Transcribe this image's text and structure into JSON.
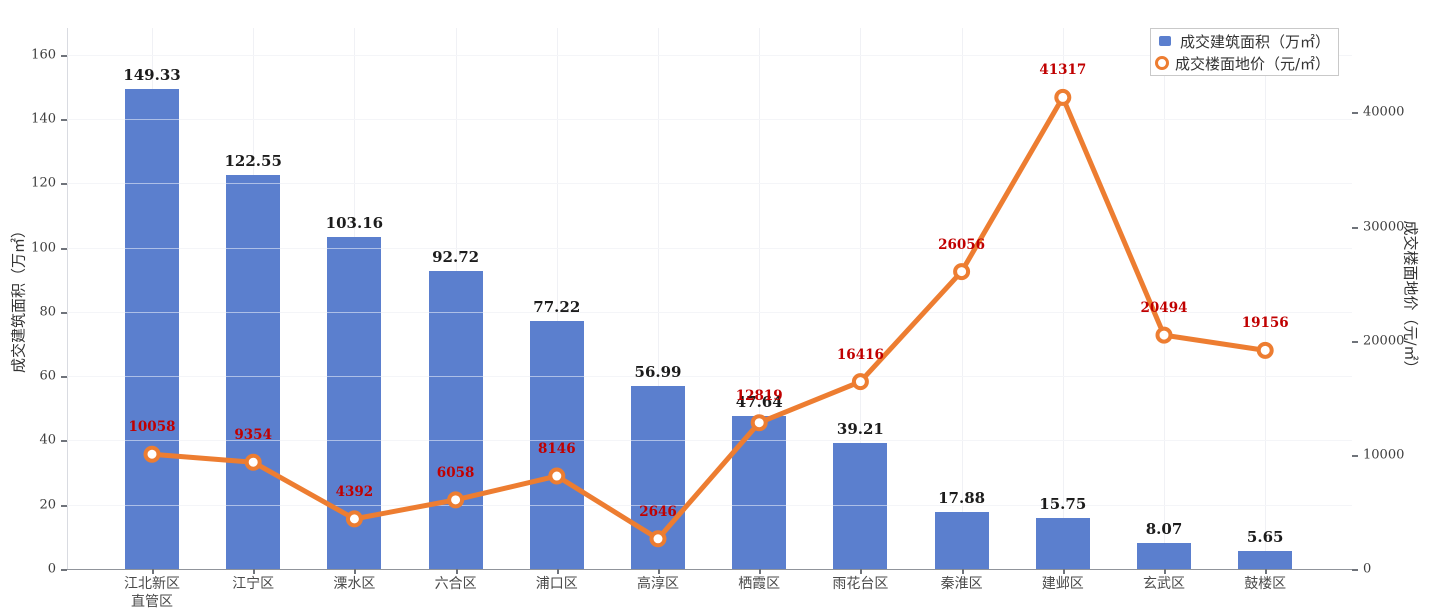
{
  "chart_data": {
    "type": "combo-bar-line",
    "categories": [
      "江北新区\n直管区",
      "江宁区",
      "溧水区",
      "六合区",
      "浦口区",
      "高淳区",
      "栖霞区",
      "雨花台区",
      "秦淮区",
      "建邺区",
      "玄武区",
      "鼓楼区"
    ],
    "series": [
      {
        "name": "成交建筑面积（万㎡）",
        "type": "bar",
        "axis": "left",
        "color": "#5b7fce",
        "label_color": "#1c1c1c",
        "values": [
          149.33,
          122.55,
          103.16,
          92.72,
          77.22,
          56.99,
          47.64,
          39.21,
          17.88,
          15.75,
          8.07,
          5.65
        ]
      },
      {
        "name": "成交楼面地价（元/㎡）",
        "type": "line",
        "axis": "right",
        "color": "#ed7d31",
        "marker": "open-circle",
        "label_color": "#c00000",
        "values": [
          10058,
          9354,
          4392,
          6058,
          8146,
          2646,
          12819,
          16416,
          26056,
          41317,
          20494,
          19156
        ]
      }
    ],
    "left_axis": {
      "title": "成交建筑面积（万㎡）",
      "ticks": [
        0,
        20,
        40,
        60,
        80,
        100,
        120,
        140,
        160
      ],
      "max": 168.3
    },
    "right_axis": {
      "title": "成交楼面地价（元/㎡）",
      "ticks": [
        0,
        10000,
        20000,
        30000,
        40000
      ],
      "max": 47400
    },
    "legend": {
      "position": "top-right",
      "entries": [
        "成交建筑面积（万㎡）",
        "成交楼面地价（元/㎡）"
      ]
    },
    "grid": {
      "horizontal": true,
      "vertical": true
    }
  }
}
